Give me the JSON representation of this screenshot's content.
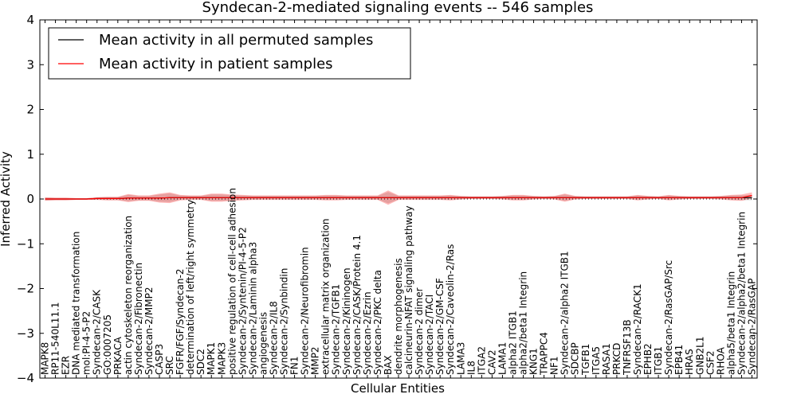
{
  "chart_data": {
    "type": "line",
    "title": "Syndecan-2-mediated signaling events -- 546 samples",
    "xlabel": "Cellular Entities",
    "ylabel": "Inferred Activity",
    "ylim": [
      -4,
      4
    ],
    "yticks": [
      4,
      3,
      2,
      1,
      0,
      -1,
      -2,
      -3,
      -4
    ],
    "ytick_labels": [
      "4",
      "3",
      "2",
      "1",
      "0",
      "−1",
      "−2",
      "−3",
      "−4"
    ],
    "grid": false,
    "legend": {
      "placement": "top-left",
      "entries": [
        {
          "name": "Mean activity in all permuted samples",
          "color": "#000000"
        },
        {
          "name": "Mean activity in patient samples",
          "color": "#ff0000"
        }
      ]
    },
    "zero_line": "dotted",
    "categories": [
      "MAPK8",
      "RP11-540L11.1",
      "EZR",
      "DNA mediated transformation",
      "mol:PI-4-5-P2",
      "Syndecan-2/CASK",
      "GO:0007205",
      "PRKACA",
      "actin cytoskeleton reorganization",
      "Syndecan-2/Fibronectin",
      "Syndecan-2/MMP2",
      "CASP3",
      "SRC",
      "FGFR/FGF/Syndecan-2",
      "determination of left/right symmetry",
      "SDC2",
      "MAPK1",
      "MAPK3",
      "positive regulation of cell-cell adhesion",
      "Syndecan-2/Syntenin/PI-4-5-P2",
      "Syndecan-2/Laminin alpha3",
      "angiogenesis",
      "Syndecan-2/IL8",
      "Syndecan-2/Synbindin",
      "FN1",
      "Syndecan-2/Neurofibromin",
      "MMP2",
      "extracellular matrix organization",
      "Syndecan-2/TGFB1",
      "Syndecan-2/Kininogen",
      "Syndecan-2/CASK/Protein 4.1",
      "Syndecan-2/Ezrin",
      "Syndecan-2/PKC delta",
      "BAX",
      "dendrite morphogenesis",
      "calcineurin-NFAT signaling pathway",
      "Syndecan-2 dimer",
      "Syndecan-2/TACI",
      "Syndecan-2/GM-CSF",
      "Syndecan-2/Caveolin-2/Ras",
      "LAMA3",
      "IL8",
      "ITGA2",
      "CAV2",
      "LAMA1",
      "alpha2 ITGB1",
      "alpha2/beta1 Integrin",
      "KNG1",
      "TRAPPC4",
      "NF1",
      "Syndecan-2/alpha2 ITGB1",
      "SDCBP",
      "TGFB1",
      "ITGA5",
      "RASA1",
      "PRKCD",
      "TNFRSF13B",
      "Syndecan-2/RACK1",
      "EPHB2",
      "ITGB1",
      "Syndecan-2/RasGAP/Src",
      "EPB41",
      "HRAS",
      "GNB2L1",
      "CSF2",
      "RHOA",
      "alpha5/beta1 Integrin",
      "Syndecan-2/alpha2/beta1 Integrin",
      "Syndecan-2/RasGAP"
    ],
    "series": [
      {
        "name": "Mean activity in all permuted samples",
        "color": "#000000",
        "values": [
          0.0,
          0.0,
          0.0,
          0.0,
          0.0,
          0.01,
          0.01,
          0.01,
          0.02,
          0.02,
          0.02,
          0.02,
          0.03,
          0.03,
          0.03,
          0.03,
          0.03,
          0.03,
          0.03,
          0.03,
          0.03,
          0.03,
          0.03,
          0.03,
          0.03,
          0.03,
          0.03,
          0.03,
          0.03,
          0.03,
          0.03,
          0.03,
          0.03,
          0.03,
          0.03,
          0.03,
          0.03,
          0.03,
          0.03,
          0.03,
          0.03,
          0.03,
          0.03,
          0.03,
          0.03,
          0.03,
          0.03,
          0.03,
          0.03,
          0.03,
          0.03,
          0.03,
          0.03,
          0.03,
          0.03,
          0.03,
          0.03,
          0.03,
          0.03,
          0.03,
          0.03,
          0.03,
          0.03,
          0.03,
          0.03,
          0.03,
          0.03,
          0.03,
          0.03
        ]
      },
      {
        "name": "Mean activity in patient samples",
        "color": "#ff0000",
        "values": [
          0.0,
          0.0,
          0.0,
          0.0,
          0.0,
          0.01,
          0.01,
          0.01,
          0.02,
          0.02,
          0.02,
          0.02,
          0.03,
          0.03,
          0.03,
          0.03,
          0.03,
          0.03,
          0.03,
          0.03,
          0.03,
          0.03,
          0.03,
          0.03,
          0.03,
          0.03,
          0.03,
          0.03,
          0.03,
          0.03,
          0.03,
          0.03,
          0.03,
          0.03,
          0.03,
          0.03,
          0.03,
          0.03,
          0.03,
          0.03,
          0.03,
          0.03,
          0.03,
          0.03,
          0.03,
          0.03,
          0.03,
          0.03,
          0.03,
          0.03,
          0.03,
          0.03,
          0.03,
          0.03,
          0.03,
          0.03,
          0.03,
          0.03,
          0.03,
          0.03,
          0.03,
          0.03,
          0.03,
          0.03,
          0.03,
          0.03,
          0.03,
          0.03,
          0.08
        ]
      }
    ],
    "band_halfwidth": [
      0.04,
      0.03,
      0.03,
      0.02,
      0.02,
      0.03,
      0.04,
      0.04,
      0.09,
      0.06,
      0.06,
      0.1,
      0.12,
      0.06,
      0.05,
      0.05,
      0.09,
      0.09,
      0.07,
      0.06,
      0.05,
      0.05,
      0.05,
      0.05,
      0.05,
      0.05,
      0.05,
      0.06,
      0.06,
      0.05,
      0.05,
      0.05,
      0.05,
      0.16,
      0.05,
      0.05,
      0.05,
      0.05,
      0.05,
      0.06,
      0.04,
      0.03,
      0.03,
      0.03,
      0.04,
      0.06,
      0.06,
      0.04,
      0.03,
      0.04,
      0.09,
      0.04,
      0.03,
      0.03,
      0.03,
      0.03,
      0.03,
      0.06,
      0.04,
      0.03,
      0.06,
      0.04,
      0.03,
      0.03,
      0.03,
      0.04,
      0.06,
      0.07,
      0.07
    ]
  }
}
